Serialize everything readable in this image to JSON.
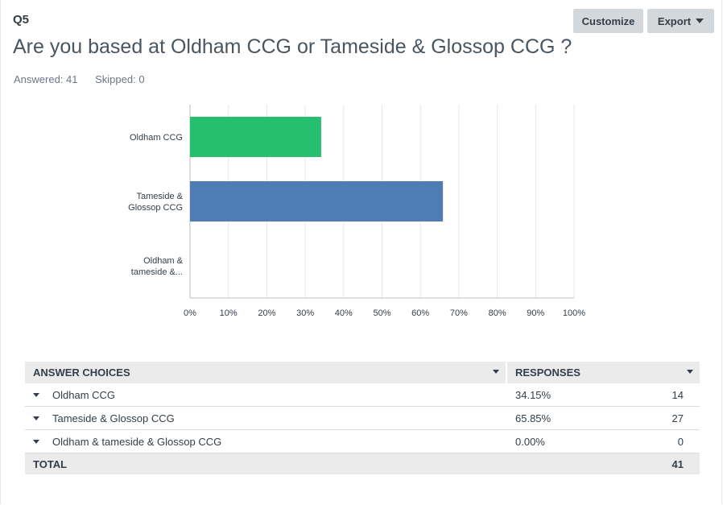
{
  "question": {
    "number": "Q5",
    "title": "Are you based at Oldham CCG or Tameside & Glossop CCG ?",
    "answered_label": "Answered: 41",
    "skipped_label": "Skipped: 0"
  },
  "toolbar": {
    "customize_label": "Customize",
    "export_label": "Export",
    "export_icon": "caret-down-icon"
  },
  "chart_data": {
    "type": "bar",
    "orientation": "horizontal",
    "categories": [
      [
        "Oldham CCG"
      ],
      [
        "Tameside &",
        "Glossop CCG"
      ],
      [
        "Oldham &",
        "tameside &..."
      ]
    ],
    "values": [
      34.15,
      65.85,
      0
    ],
    "colors": [
      "#25bf6f",
      "#507cb6",
      "#f05b24"
    ],
    "xlim": [
      0,
      100
    ],
    "xticks": [
      "0%",
      "10%",
      "20%",
      "30%",
      "40%",
      "50%",
      "60%",
      "70%",
      "80%",
      "90%",
      "100%"
    ],
    "grid": true
  },
  "table": {
    "headers": {
      "choices": "ANSWER CHOICES",
      "responses": "RESPONSES"
    },
    "rows": [
      {
        "choice": "Oldham CCG",
        "percent": "34.15%",
        "count": "14"
      },
      {
        "choice": "Tameside & Glossop CCG",
        "percent": "65.85%",
        "count": "27"
      },
      {
        "choice": "Oldham & tameside & Glossop CCG",
        "percent": "0.00%",
        "count": "0"
      }
    ],
    "total_label": "TOTAL",
    "total_count": "41"
  }
}
